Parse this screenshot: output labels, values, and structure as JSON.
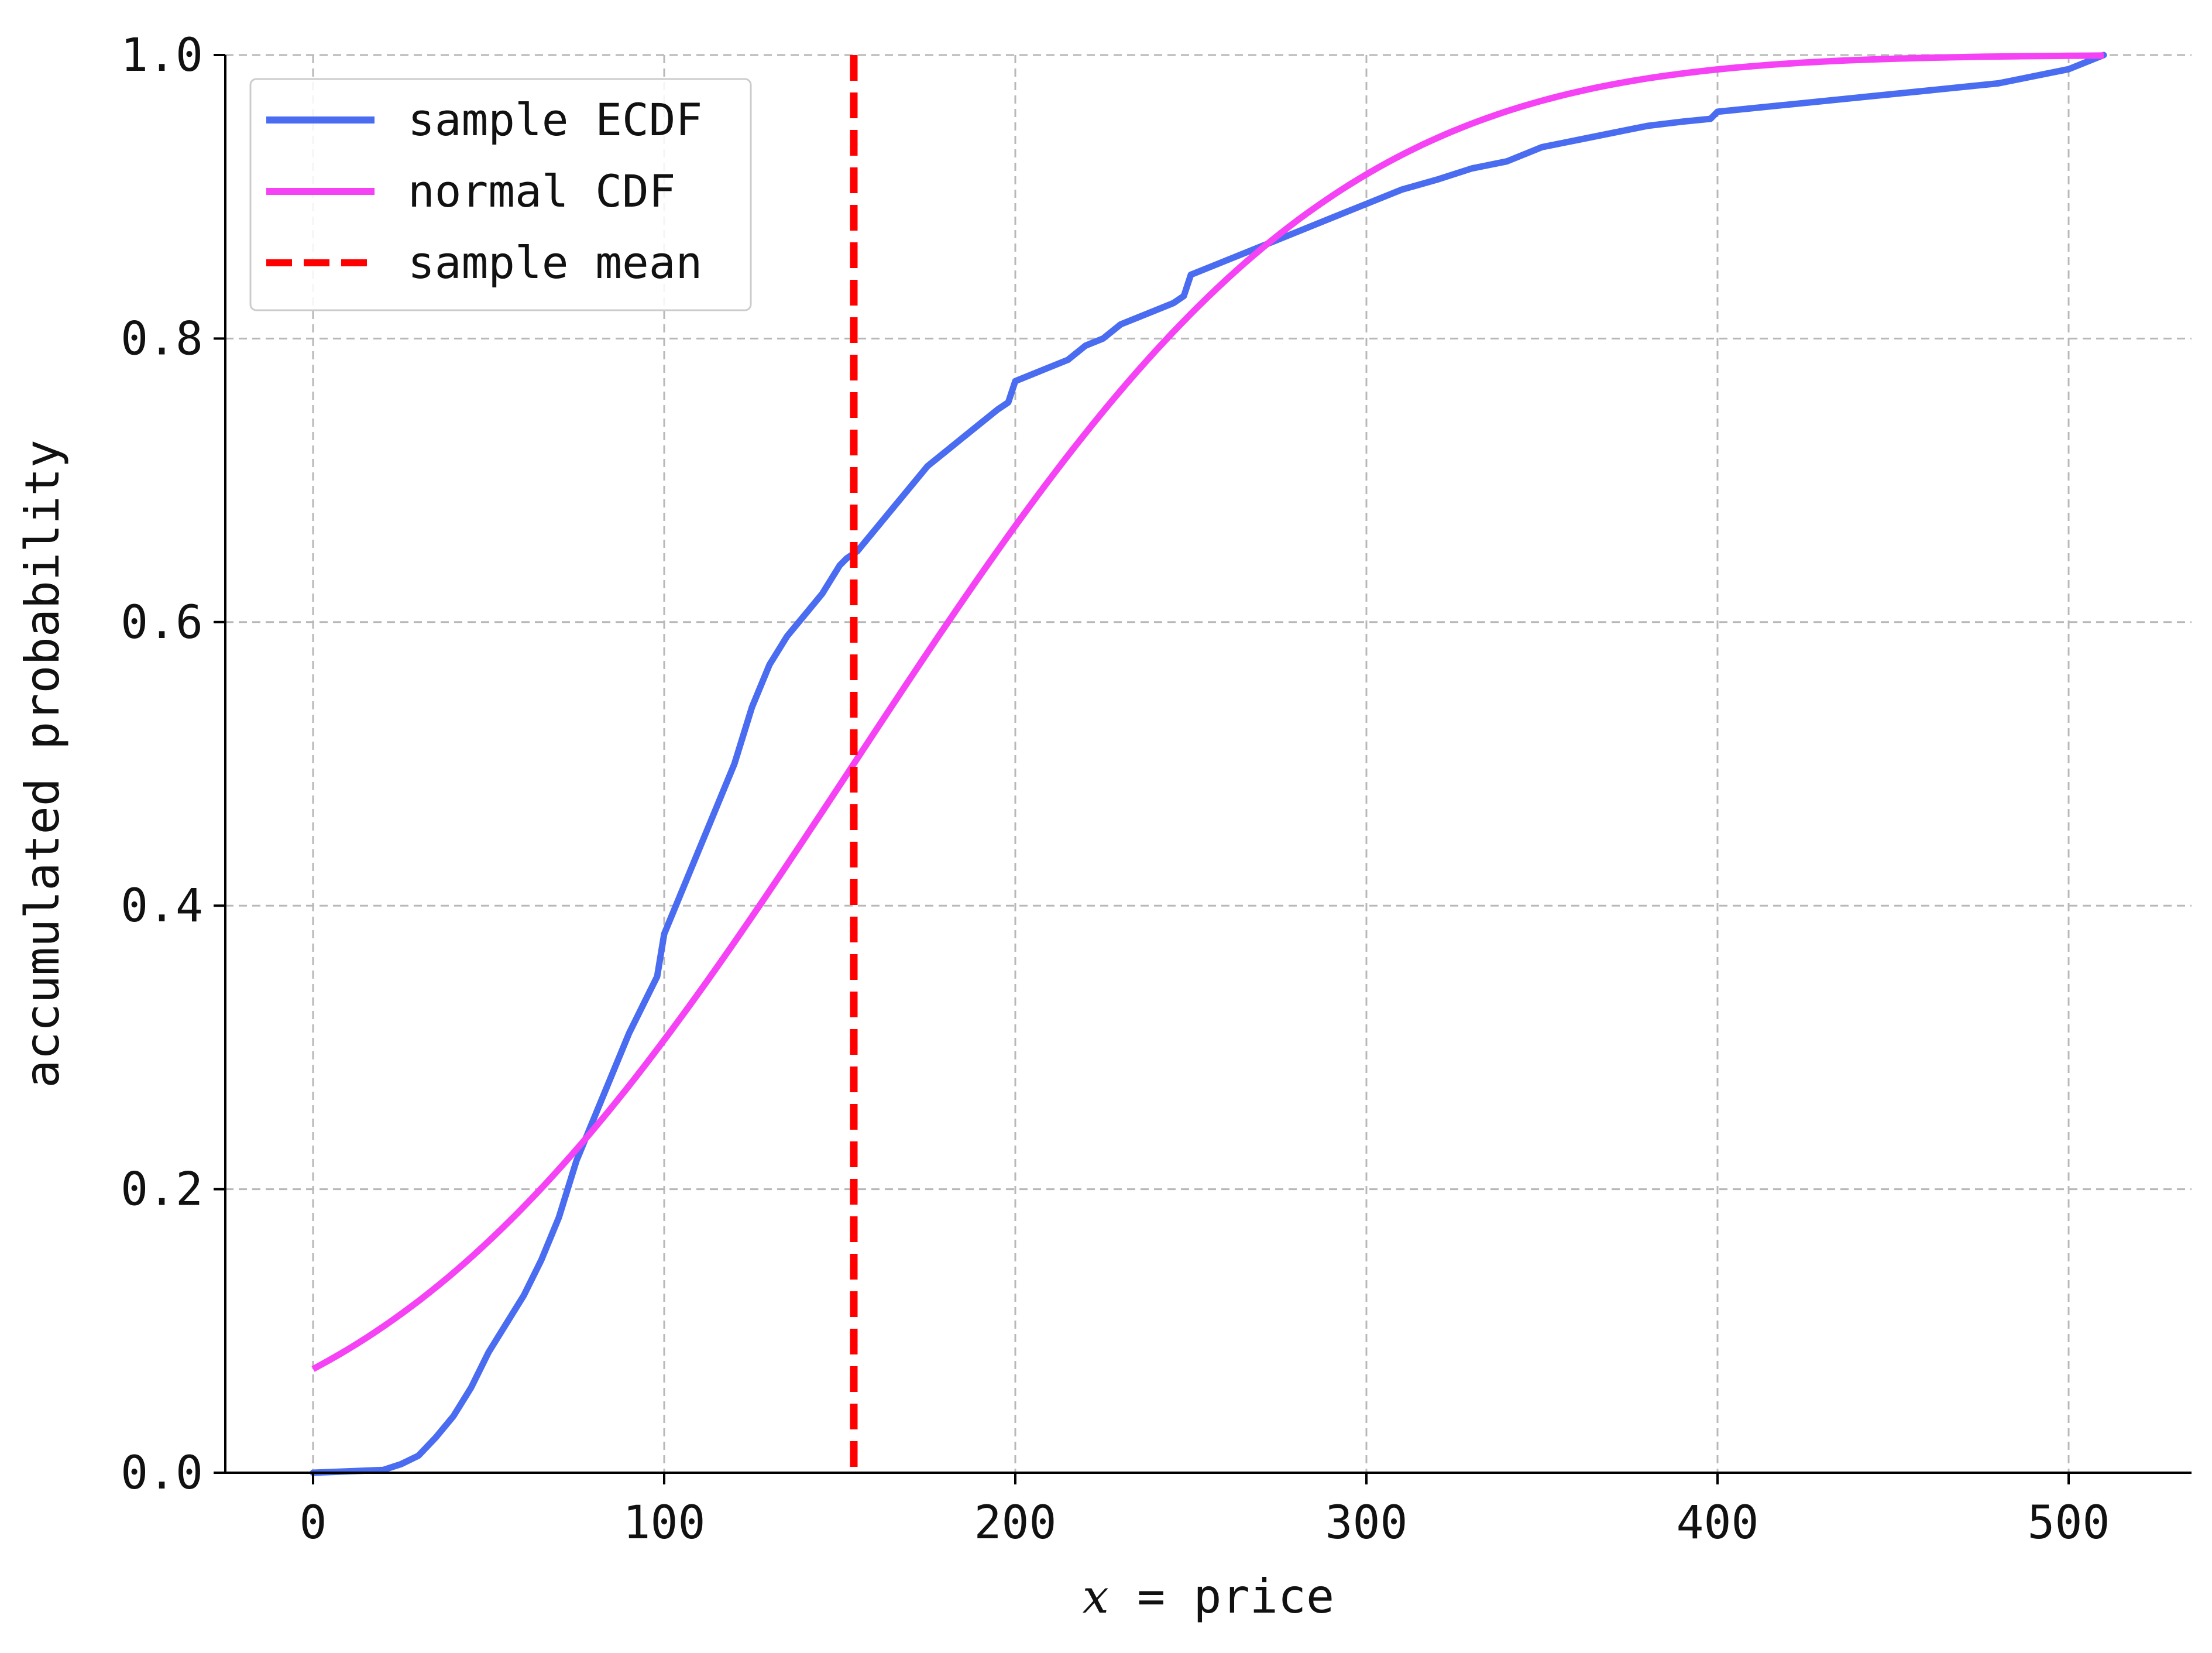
{
  "chart_data": {
    "type": "line",
    "title": "",
    "xlabel_var": "x",
    "xlabel_rest": " = price",
    "ylabel": "accumulated probability",
    "xlim": [
      -25,
      535
    ],
    "ylim": [
      0,
      1
    ],
    "x_ticks": [
      0,
      100,
      200,
      300,
      400,
      500
    ],
    "x_tick_labels": [
      "0",
      "100",
      "200",
      "300",
      "400",
      "500"
    ],
    "y_ticks": [
      0,
      0.2,
      0.4,
      0.6,
      0.8,
      1.0
    ],
    "y_tick_labels": [
      "0.0",
      "0.2",
      "0.4",
      "0.6",
      "0.8",
      "1.0"
    ],
    "grid": true,
    "legend_position": "top-left",
    "series": [
      {
        "name": "sample ECDF",
        "kind": "line",
        "color": "#4a6cf0",
        "x": [
          0,
          20,
          25,
          30,
          35,
          40,
          45,
          50,
          55,
          60,
          65,
          70,
          75,
          80,
          85,
          90,
          95,
          98,
          100,
          105,
          110,
          115,
          120,
          125,
          130,
          135,
          140,
          145,
          150,
          152,
          155,
          160,
          165,
          170,
          175,
          180,
          185,
          190,
          195,
          198,
          200,
          205,
          210,
          215,
          220,
          225,
          230,
          235,
          240,
          245,
          248,
          250,
          255,
          260,
          270,
          280,
          290,
          300,
          310,
          320,
          330,
          340,
          350,
          360,
          370,
          380,
          390,
          398,
          400,
          420,
          440,
          460,
          480,
          500,
          510
        ],
        "y": [
          0.0,
          0.002,
          0.006,
          0.012,
          0.025,
          0.04,
          0.06,
          0.085,
          0.105,
          0.125,
          0.15,
          0.18,
          0.22,
          0.25,
          0.28,
          0.31,
          0.335,
          0.35,
          0.38,
          0.41,
          0.44,
          0.47,
          0.5,
          0.54,
          0.57,
          0.59,
          0.605,
          0.62,
          0.64,
          0.645,
          0.65,
          0.665,
          0.68,
          0.695,
          0.71,
          0.72,
          0.73,
          0.74,
          0.75,
          0.755,
          0.77,
          0.775,
          0.78,
          0.785,
          0.795,
          0.8,
          0.81,
          0.815,
          0.82,
          0.825,
          0.83,
          0.845,
          0.85,
          0.855,
          0.865,
          0.875,
          0.885,
          0.895,
          0.905,
          0.912,
          0.92,
          0.925,
          0.935,
          0.94,
          0.945,
          0.95,
          0.953,
          0.955,
          0.96,
          0.965,
          0.97,
          0.975,
          0.98,
          0.99,
          1.0
        ]
      },
      {
        "name": "normal CDF",
        "kind": "normal_cdf",
        "color": "#f542f5",
        "mean": 154,
        "sd": 106,
        "x_range": [
          0,
          510
        ]
      },
      {
        "name": "sample mean",
        "kind": "vline",
        "color": "#ff0000",
        "x": 154
      }
    ]
  }
}
